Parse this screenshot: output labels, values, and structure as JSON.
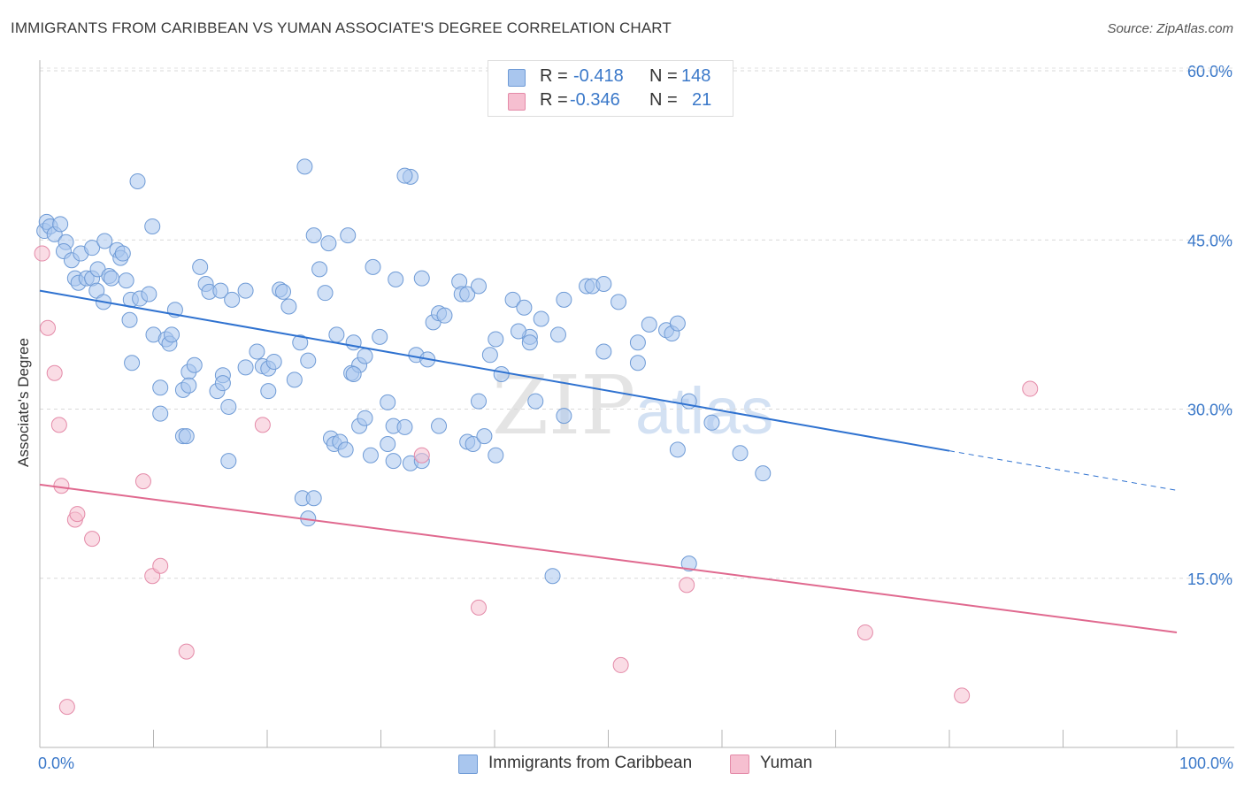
{
  "title": "IMMIGRANTS FROM CARIBBEAN VS YUMAN ASSOCIATE'S DEGREE CORRELATION CHART",
  "source": "Source: ZipAtlas.com",
  "watermark": {
    "zip": "ZIP",
    "atlas": "atlas"
  },
  "legend": {
    "r_label": "R =",
    "n_label": "N =",
    "rows": [
      {
        "r": "-0.418",
        "n": "148",
        "color": "#a9c6ee",
        "border": "#6f9bd6"
      },
      {
        "r": "-0.346",
        "n": "21",
        "color": "#f6bfd0",
        "border": "#e48aa8"
      }
    ]
  },
  "chart_data": {
    "type": "scatter",
    "title": "IMMIGRANTS FROM CARIBBEAN VS YUMAN ASSOCIATE'S DEGREE CORRELATION CHART",
    "xlabel": "",
    "ylabel": "Associate's Degree",
    "xlim": [
      0,
      100
    ],
    "ylim": [
      0,
      62
    ],
    "x_tick_labels": [
      "0.0%",
      "100.0%"
    ],
    "y_ticks": [
      15,
      30,
      45,
      60
    ],
    "y_tick_labels": [
      "15.0%",
      "30.0%",
      "45.0%",
      "60.0%"
    ],
    "grid": true,
    "legend_position": "top-center",
    "series": [
      {
        "name": "Immigrants from Caribbean",
        "color": "#a9c6ee",
        "edge": "#6f9bd6",
        "line_color": "#2f72d0",
        "trend": {
          "x0": 0,
          "y0": 40.5,
          "x1": 80,
          "y1": 26.3,
          "dash_to": 100,
          "dash_y": 22.8
        },
        "points": [
          [
            0.4,
            45.8
          ],
          [
            0.6,
            46.6
          ],
          [
            0.9,
            46.2
          ],
          [
            1.3,
            45.5
          ],
          [
            1.8,
            46.4
          ],
          [
            2.3,
            44.8
          ],
          [
            2.1,
            44.0
          ],
          [
            2.8,
            43.2
          ],
          [
            3.6,
            43.8
          ],
          [
            4.6,
            44.3
          ],
          [
            5.7,
            44.9
          ],
          [
            6.8,
            44.1
          ],
          [
            7.1,
            43.4
          ],
          [
            7.3,
            43.8
          ],
          [
            3.1,
            41.6
          ],
          [
            3.4,
            41.2
          ],
          [
            4.1,
            41.6
          ],
          [
            4.6,
            41.6
          ],
          [
            5.1,
            42.4
          ],
          [
            6.1,
            41.8
          ],
          [
            6.3,
            41.6
          ],
          [
            7.6,
            41.4
          ],
          [
            8.6,
            50.2
          ],
          [
            9.9,
            46.2
          ],
          [
            5.0,
            40.5
          ],
          [
            5.6,
            39.5
          ],
          [
            8.0,
            39.7
          ],
          [
            8.8,
            39.8
          ],
          [
            9.6,
            40.2
          ],
          [
            11.9,
            38.8
          ],
          [
            7.9,
            37.9
          ],
          [
            10.0,
            36.6
          ],
          [
            11.1,
            36.2
          ],
          [
            11.4,
            35.8
          ],
          [
            11.6,
            36.6
          ],
          [
            14.1,
            42.6
          ],
          [
            14.6,
            41.1
          ],
          [
            14.9,
            40.4
          ],
          [
            15.9,
            40.5
          ],
          [
            16.9,
            39.7
          ],
          [
            18.1,
            40.5
          ],
          [
            21.1,
            40.6
          ],
          [
            21.4,
            40.4
          ],
          [
            21.9,
            39.1
          ],
          [
            22.9,
            35.9
          ],
          [
            23.3,
            51.5
          ],
          [
            24.1,
            45.4
          ],
          [
            24.6,
            42.4
          ],
          [
            25.1,
            40.3
          ],
          [
            25.4,
            44.7
          ],
          [
            26.1,
            36.6
          ],
          [
            27.1,
            45.4
          ],
          [
            27.4,
            33.2
          ],
          [
            27.6,
            35.9
          ],
          [
            28.1,
            33.9
          ],
          [
            28.6,
            34.7
          ],
          [
            29.3,
            42.6
          ],
          [
            29.9,
            36.4
          ],
          [
            31.3,
            41.5
          ],
          [
            32.6,
            50.6
          ],
          [
            33.1,
            34.8
          ],
          [
            33.6,
            41.6
          ],
          [
            34.6,
            37.7
          ],
          [
            35.1,
            38.5
          ],
          [
            35.6,
            38.3
          ],
          [
            36.9,
            41.3
          ],
          [
            37.1,
            40.2
          ],
          [
            37.6,
            40.2
          ],
          [
            38.6,
            40.9
          ],
          [
            39.6,
            34.8
          ],
          [
            40.1,
            36.2
          ],
          [
            41.6,
            39.7
          ],
          [
            42.6,
            39.0
          ],
          [
            43.1,
            36.4
          ],
          [
            44.1,
            38.0
          ],
          [
            45.6,
            36.6
          ],
          [
            46.1,
            39.7
          ],
          [
            48.1,
            40.9
          ],
          [
            48.6,
            40.9
          ],
          [
            49.6,
            41.1
          ],
          [
            50.9,
            39.5
          ],
          [
            52.6,
            35.9
          ],
          [
            53.6,
            37.5
          ],
          [
            55.1,
            37.0
          ],
          [
            55.6,
            36.7
          ],
          [
            56.1,
            37.6
          ],
          [
            8.1,
            34.1
          ],
          [
            13.1,
            33.3
          ],
          [
            13.6,
            33.9
          ],
          [
            16.1,
            33.0
          ],
          [
            19.1,
            35.1
          ],
          [
            19.6,
            33.8
          ],
          [
            20.1,
            33.6
          ],
          [
            20.6,
            34.2
          ],
          [
            23.6,
            34.3
          ],
          [
            10.6,
            31.9
          ],
          [
            12.6,
            31.7
          ],
          [
            13.1,
            32.1
          ],
          [
            15.6,
            31.6
          ],
          [
            16.1,
            32.3
          ],
          [
            16.6,
            30.2
          ],
          [
            18.1,
            33.7
          ],
          [
            20.1,
            31.6
          ],
          [
            22.4,
            32.6
          ],
          [
            27.6,
            33.1
          ],
          [
            30.6,
            30.6
          ],
          [
            31.1,
            28.5
          ],
          [
            34.1,
            34.4
          ],
          [
            38.6,
            30.7
          ],
          [
            40.6,
            33.1
          ],
          [
            43.6,
            30.7
          ],
          [
            46.1,
            29.4
          ],
          [
            49.6,
            35.1
          ],
          [
            52.6,
            34.1
          ],
          [
            57.1,
            30.7
          ],
          [
            10.6,
            29.6
          ],
          [
            12.6,
            27.6
          ],
          [
            12.9,
            27.6
          ],
          [
            16.6,
            25.4
          ],
          [
            25.6,
            27.4
          ],
          [
            25.9,
            26.9
          ],
          [
            26.4,
            27.1
          ],
          [
            26.9,
            26.4
          ],
          [
            28.1,
            28.5
          ],
          [
            28.6,
            29.2
          ],
          [
            29.1,
            25.9
          ],
          [
            30.6,
            26.9
          ],
          [
            31.1,
            25.4
          ],
          [
            32.1,
            28.4
          ],
          [
            32.6,
            25.2
          ],
          [
            33.6,
            25.4
          ],
          [
            35.1,
            28.5
          ],
          [
            37.6,
            27.1
          ],
          [
            38.1,
            26.9
          ],
          [
            39.1,
            27.6
          ],
          [
            40.1,
            25.9
          ],
          [
            23.1,
            22.1
          ],
          [
            24.1,
            22.1
          ],
          [
            23.6,
            20.3
          ],
          [
            56.1,
            26.4
          ],
          [
            61.6,
            26.1
          ],
          [
            63.6,
            24.3
          ],
          [
            59.1,
            28.8
          ],
          [
            45.1,
            15.2
          ],
          [
            57.1,
            16.3
          ],
          [
            42.1,
            36.9
          ],
          [
            43.1,
            35.9
          ],
          [
            32.1,
            50.7
          ]
        ]
      },
      {
        "name": "Yuman",
        "color": "#f6bfd0",
        "edge": "#e48aa8",
        "line_color": "#e0698f",
        "trend": {
          "x0": 0,
          "y0": 23.3,
          "x1": 100,
          "y1": 10.2
        },
        "points": [
          [
            0.2,
            43.8
          ],
          [
            0.7,
            37.2
          ],
          [
            1.3,
            33.2
          ],
          [
            1.7,
            28.6
          ],
          [
            1.9,
            23.2
          ],
          [
            3.1,
            20.2
          ],
          [
            3.3,
            20.7
          ],
          [
            4.6,
            18.5
          ],
          [
            9.1,
            23.6
          ],
          [
            9.9,
            15.2
          ],
          [
            10.6,
            16.1
          ],
          [
            12.9,
            8.5
          ],
          [
            19.6,
            28.6
          ],
          [
            33.6,
            25.9
          ],
          [
            38.6,
            12.4
          ],
          [
            51.1,
            7.3
          ],
          [
            56.9,
            14.4
          ],
          [
            72.6,
            10.2
          ],
          [
            81.1,
            4.6
          ],
          [
            2.4,
            3.6
          ],
          [
            87.1,
            31.8
          ]
        ]
      }
    ]
  }
}
